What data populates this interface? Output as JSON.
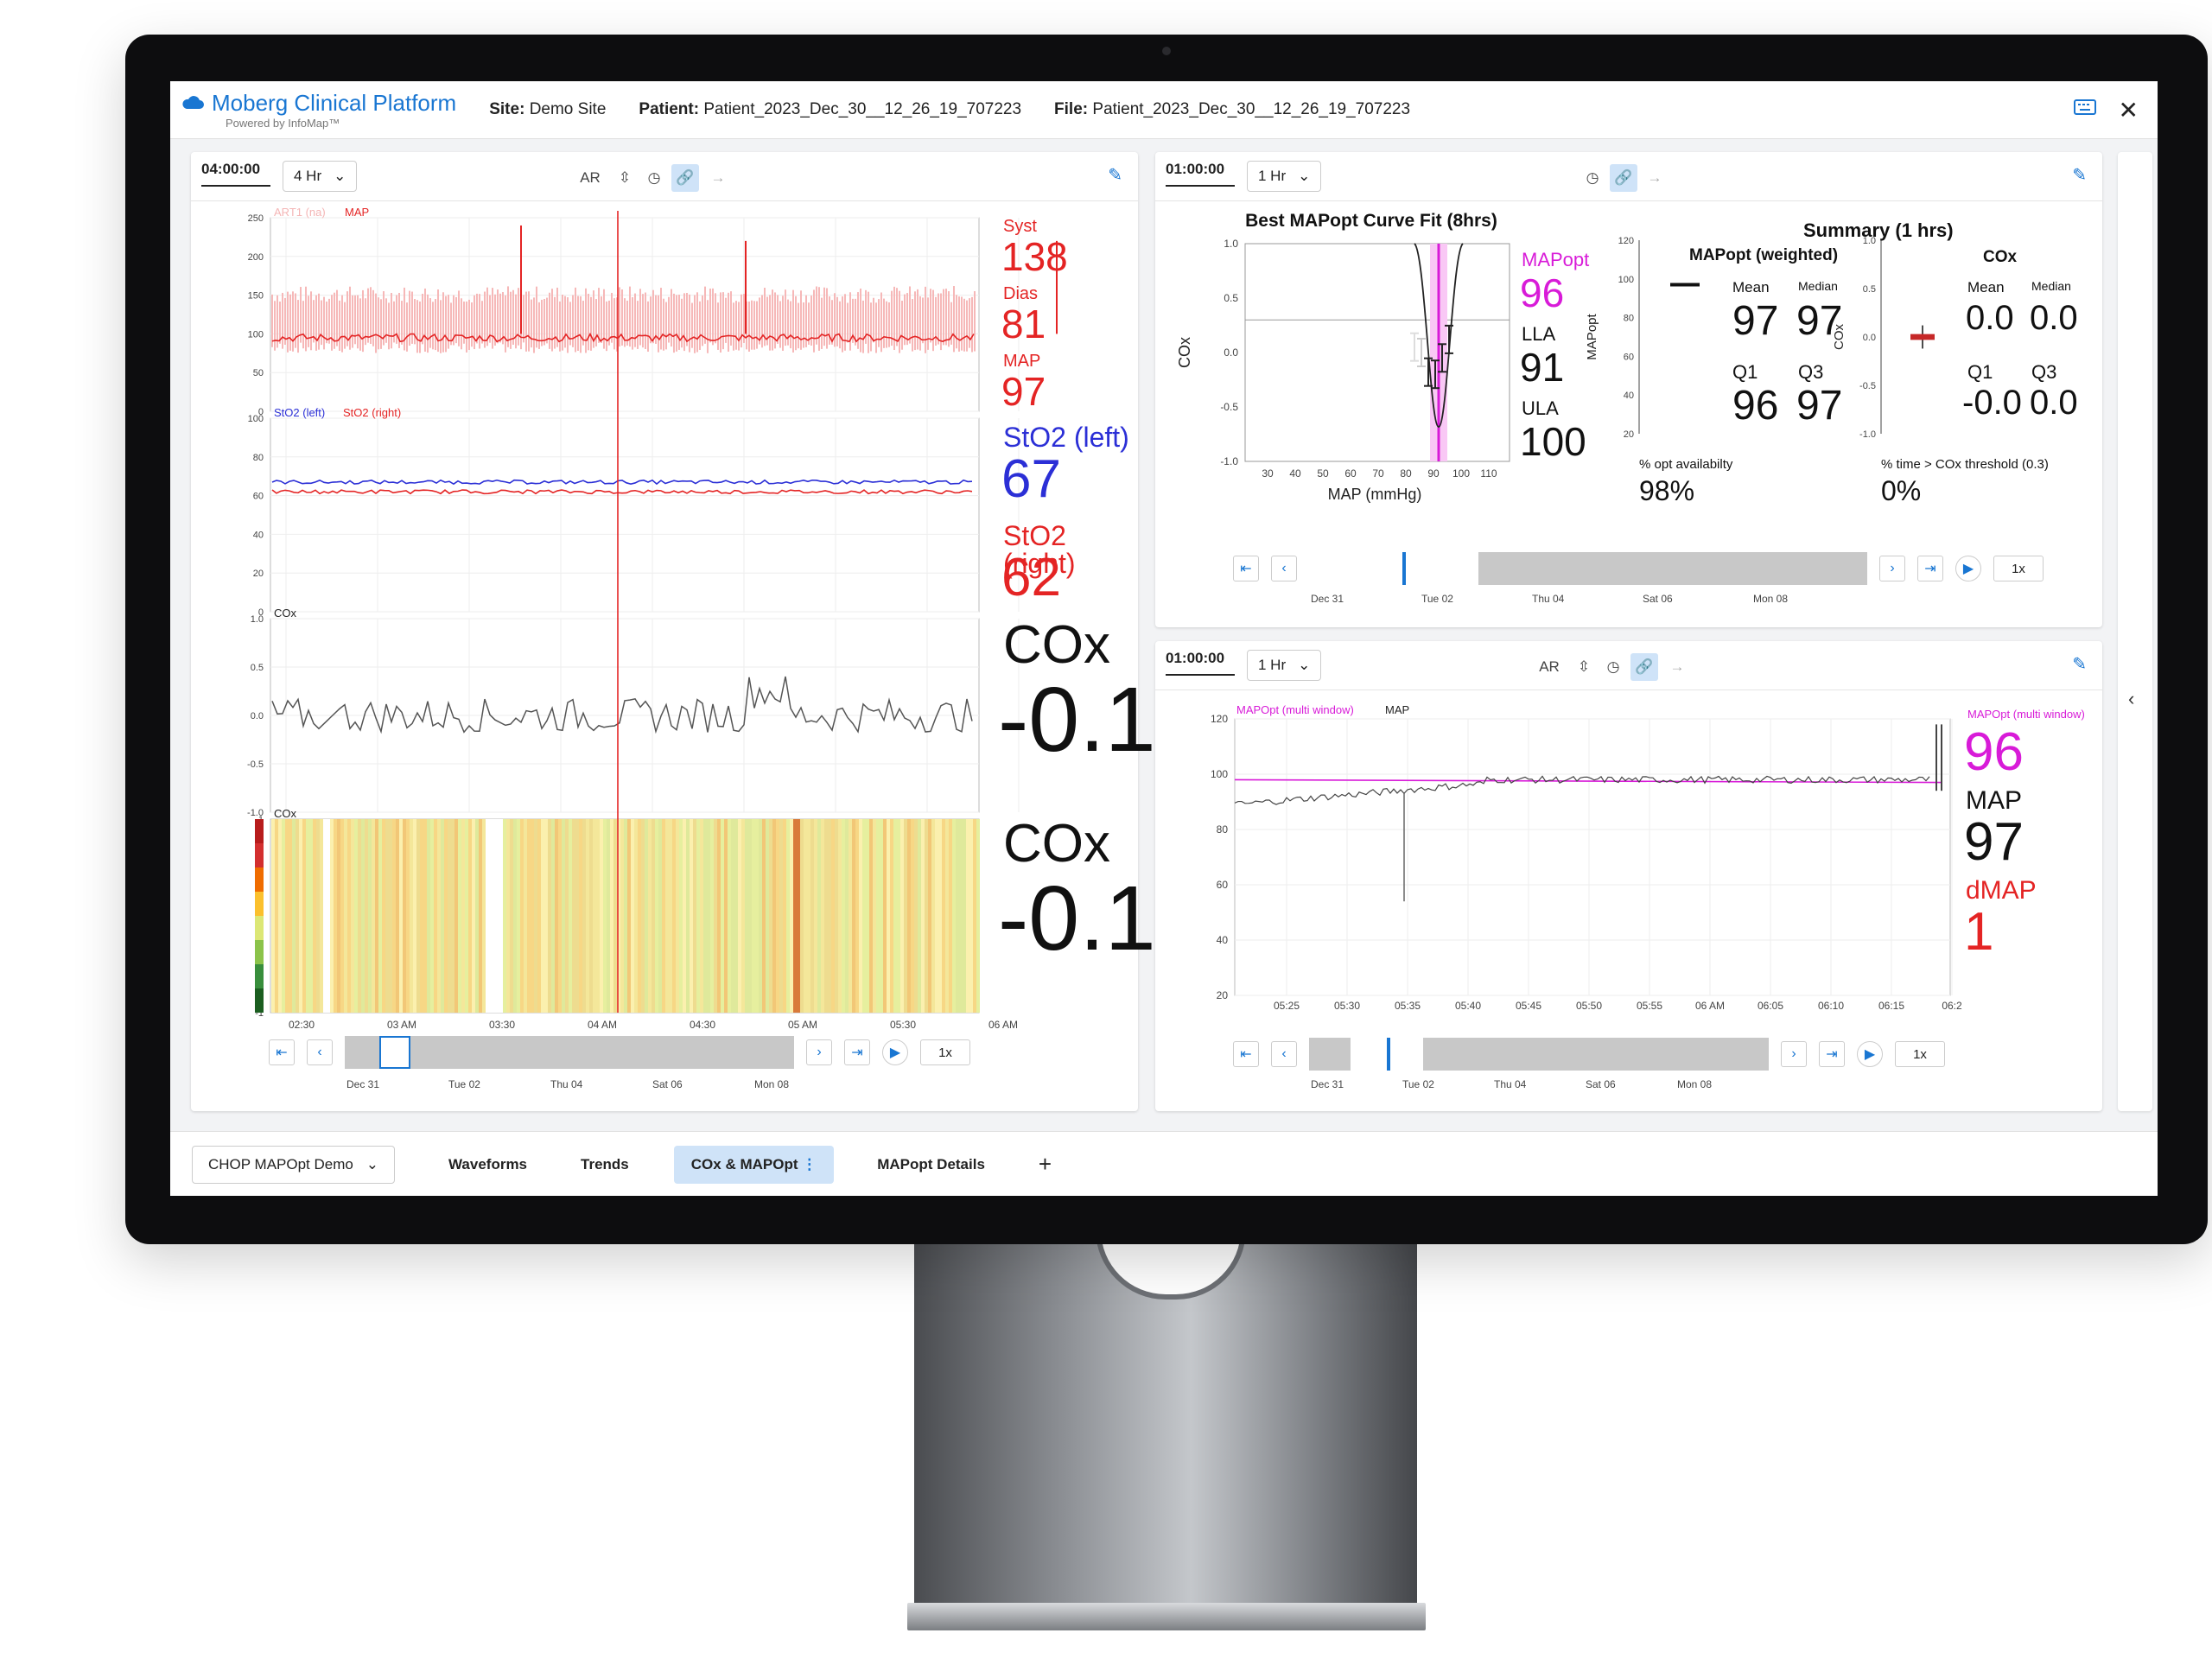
{
  "header": {
    "app_title": "Moberg Clinical Platform",
    "app_subtitle": "Powered by InfoMap™",
    "site_label": "Site:",
    "site_value": "Demo Site",
    "patient_label": "Patient:",
    "patient_value": "Patient_2023_Dec_30__12_26_19_707223",
    "file_label": "File:",
    "file_value": "Patient_2023_Dec_30__12_26_19_707223",
    "icons": [
      "keyboard-icon",
      "close-icon"
    ]
  },
  "left_panel": {
    "timecode": "04:00:00",
    "window": "4 Hr",
    "ar_label": "AR",
    "readouts": {
      "syst_label": "Syst",
      "syst_value": "138",
      "dias_label": "Dias",
      "dias_value": "81",
      "map_label": "MAP",
      "map_value": "97",
      "sto2_left_label": "StO2 (left)",
      "sto2_left_value": "67",
      "sto2_right_label": "StO2 (right)",
      "sto2_right_value": "62",
      "cox_label": "COx",
      "cox_value": "-0.1",
      "cox2_label": "COx",
      "cox2_value": "-0.1"
    },
    "plot1_legend": [
      "ART1 (na)",
      "MAP"
    ],
    "plot2_legend": [
      "StO2 (left)",
      "StO2 (right)"
    ],
    "plot3_legend": "COx",
    "plot4_legend": "COx",
    "x_ticks": [
      "02:30",
      "03 AM",
      "03:30",
      "04 AM",
      "04:30",
      "05 AM",
      "05:30",
      "06 AM"
    ],
    "nav_dates": [
      "Dec 31",
      "Tue 02",
      "Thu 04",
      "Sat 06",
      "Mon 08"
    ],
    "rate": "1x"
  },
  "right_top_panel": {
    "timecode": "01:00:00",
    "window": "1 Hr",
    "curve_title": "Best MAPopt Curve Fit (8hrs)",
    "curve_ylabel": "COx",
    "curve_xlabel": "MAP (mmHg)",
    "curve_x_ticks": [
      "30",
      "40",
      "50",
      "60",
      "70",
      "80",
      "90",
      "100",
      "110"
    ],
    "curve_y_ticks": [
      "1.0",
      "0.5",
      "0.0",
      "-0.5",
      "-1.0"
    ],
    "mapopt_label": "MAPopt",
    "mapopt_value": "96",
    "lla_label": "LLA",
    "lla_value": "91",
    "ula_label": "ULA",
    "ula_value": "100",
    "summary_title": "Summary (1 hrs)",
    "weighted_title": "MAPopt (weighted)",
    "weighted_ylabel": "MAPopt",
    "weighted_y_ticks": [
      "120",
      "100",
      "80",
      "60",
      "40",
      "20"
    ],
    "w_mean_label": "Mean",
    "w_mean": "97",
    "w_median_label": "Median",
    "w_median": "97",
    "w_q1_label": "Q1",
    "w_q1": "96",
    "w_q3_label": "Q3",
    "w_q3": "97",
    "opt_avail_label": "% opt availabilty",
    "opt_avail": "98%",
    "cox_title": "COx",
    "cox_ylabel": "COx",
    "cox_y_ticks": [
      "1.0",
      "0.5",
      "0.0",
      "-0.5",
      "-1.0"
    ],
    "c_mean_label": "Mean",
    "c_mean": "0.0",
    "c_median_label": "Median",
    "c_median": "0.0",
    "c_q1_label": "Q1",
    "c_q1": "-0.0",
    "c_q3_label": "Q3",
    "c_q3": "0.0",
    "cox_thresh_label": "% time > COx threshold (0.3)",
    "cox_thresh": "0%",
    "nav_dates": [
      "Dec 31",
      "Tue 02",
      "Thu 04",
      "Sat 06",
      "Mon 08"
    ],
    "rate": "1x"
  },
  "right_bottom_panel": {
    "timecode": "01:00:00",
    "window": "1 Hr",
    "ar_label": "AR",
    "legend": [
      "MAPOpt (multi window)",
      "MAP"
    ],
    "y_ticks": [
      "120",
      "100",
      "80",
      "60",
      "40",
      "20"
    ],
    "x_ticks": [
      "05:25",
      "05:30",
      "05:35",
      "05:40",
      "05:45",
      "05:50",
      "05:55",
      "06 AM",
      "06:05",
      "06:10",
      "06:15",
      "06:2"
    ],
    "mapopt_label": "MAPOpt (multi window)",
    "mapopt_value": "96",
    "map_label": "MAP",
    "map_value": "97",
    "dmap_label": "dMAP",
    "dmap_value": "1",
    "nav_dates": [
      "Dec 31",
      "Tue 02",
      "Thu 04",
      "Sat 06",
      "Mon 08"
    ],
    "rate": "1x"
  },
  "bottom_bar": {
    "workspace": "CHOP MAPOpt Demo",
    "tabs": [
      "Waveforms",
      "Trends",
      "COx & MAPOpt",
      "MAPopt Details"
    ],
    "add": "+"
  },
  "colors": {
    "accent": "#1976d2",
    "red": "#e42424",
    "blue": "#2b2fd6",
    "magenta": "#d81bd8"
  }
}
